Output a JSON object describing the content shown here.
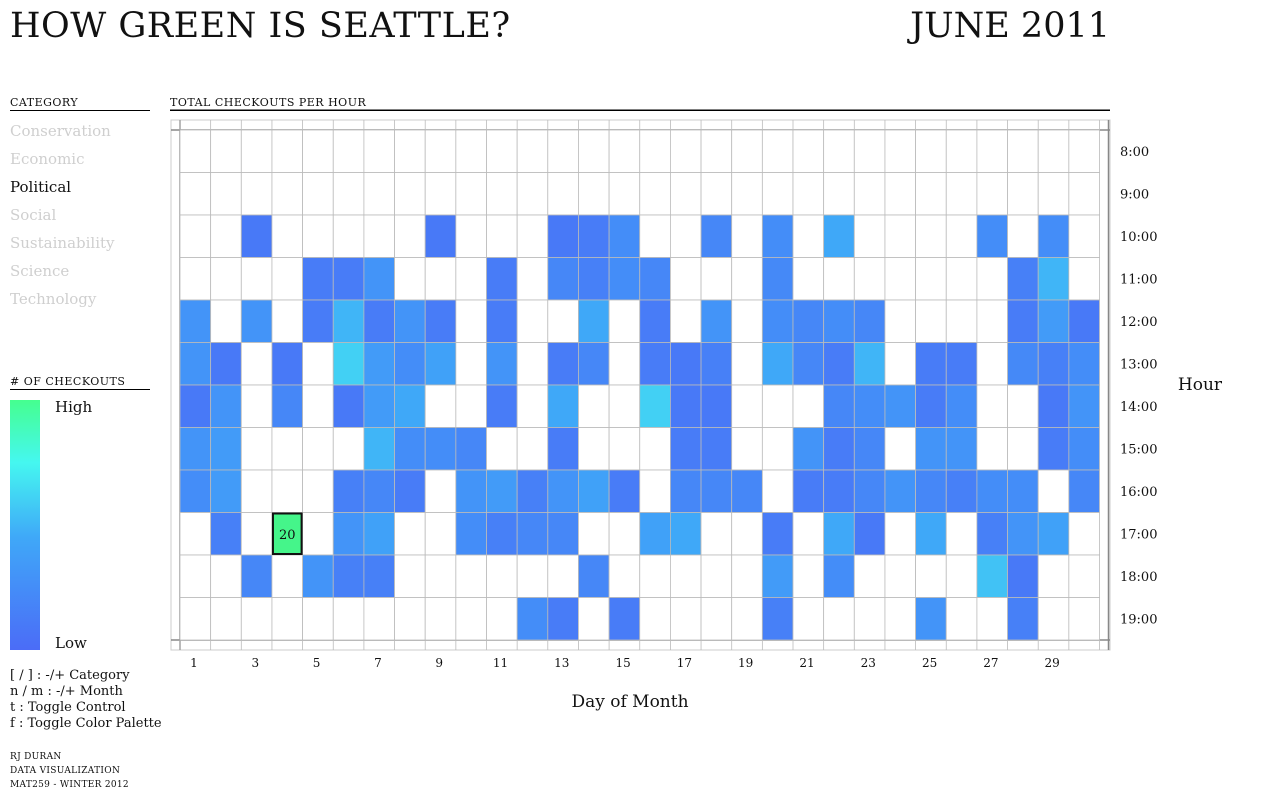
{
  "title": "HOW GREEN IS SEATTLE?",
  "month": "JUNE 2011",
  "sidebar": {
    "category_heading": "CATEGORY",
    "categories": [
      "Conservation",
      "Economic",
      "Political",
      "Social",
      "Sustainability",
      "Science",
      "Technology"
    ],
    "active_category": "Political",
    "legend_heading": "# OF CHECKOUTS",
    "legend_high": "High",
    "legend_low": "Low",
    "help": [
      "[ / ] : -/+ Category",
      "n / m : -/+ Month",
      "t : Toggle Control",
      "f : Toggle Color Palette"
    ],
    "credits": [
      "RJ DURAN",
      "DATA VISUALIZATION",
      "MAT259 - WINTER 2012"
    ]
  },
  "colors": {
    "low": "#4b6cf7",
    "high": "#45ff8f",
    "grid": "#bbbbbb",
    "highlight": "#45f58a"
  },
  "chart_data": {
    "type": "heatmap",
    "title": "TOTAL CHECKOUTS PER HOUR",
    "xlabel": "Day of Month",
    "ylabel": "Hour",
    "x": [
      1,
      2,
      3,
      4,
      5,
      6,
      7,
      8,
      9,
      10,
      11,
      12,
      13,
      14,
      15,
      16,
      17,
      18,
      19,
      20,
      21,
      22,
      23,
      24,
      25,
      26,
      27,
      28,
      29,
      30
    ],
    "x_tick_labels": [
      "1",
      "3",
      "5",
      "7",
      "9",
      "11",
      "13",
      "15",
      "17",
      "19",
      "21",
      "23",
      "25",
      "27",
      "29"
    ],
    "y": [
      "8:00",
      "9:00",
      "10:00",
      "11:00",
      "12:00",
      "13:00",
      "14:00",
      "15:00",
      "16:00",
      "17:00",
      "18:00",
      "19:00"
    ],
    "value_scale": "relative intensity 0-1 (0 = no checkouts, 1 = highest); the highlighted cell reads 20 checkouts",
    "values": [
      [
        0,
        0,
        0,
        0,
        0,
        0,
        0,
        0,
        0,
        0,
        0,
        0,
        0,
        0,
        0,
        0,
        0,
        0,
        0,
        0,
        0,
        0,
        0,
        0,
        0,
        0,
        0,
        0,
        0,
        0
      ],
      [
        0,
        0,
        0,
        0,
        0,
        0,
        0,
        0,
        0,
        0,
        0,
        0,
        0,
        0,
        0,
        0,
        0,
        0,
        0,
        0,
        0,
        0,
        0,
        0,
        0,
        0,
        0,
        0,
        0,
        0
      ],
      [
        0,
        0,
        0.1,
        0,
        0,
        0,
        0,
        0,
        0.1,
        0,
        0,
        0,
        0.1,
        0.12,
        0.25,
        0,
        0,
        0.2,
        0,
        0.25,
        0,
        0.45,
        0,
        0,
        0,
        0,
        0.25,
        0,
        0.25,
        0
      ],
      [
        0,
        0,
        0,
        0,
        0.12,
        0.12,
        0.3,
        0,
        0,
        0,
        0.12,
        0,
        0.2,
        0.15,
        0.25,
        0.2,
        0,
        0,
        0,
        0.22,
        0,
        0,
        0,
        0,
        0,
        0,
        0,
        0.15,
        0.5,
        0
      ],
      [
        0.3,
        0,
        0.3,
        0,
        0.12,
        0.5,
        0.12,
        0.3,
        0.12,
        0,
        0.12,
        0,
        0,
        0.45,
        0,
        0.12,
        0,
        0.3,
        0,
        0.25,
        0.2,
        0.25,
        0.2,
        0,
        0,
        0,
        0,
        0.12,
        0.35,
        0.1
      ],
      [
        0.3,
        0.1,
        0,
        0.1,
        0,
        0.6,
        0.35,
        0.25,
        0.4,
        0,
        0.3,
        0,
        0.12,
        0.2,
        0,
        0.12,
        0.1,
        0.15,
        0,
        0.45,
        0.2,
        0.12,
        0.5,
        0,
        0.12,
        0.12,
        0,
        0.22,
        0.15,
        0.25
      ],
      [
        0.1,
        0.3,
        0,
        0.2,
        0,
        0.1,
        0.35,
        0.45,
        0,
        0,
        0.12,
        0,
        0.45,
        0,
        0,
        0.6,
        0.1,
        0.1,
        0,
        0,
        0,
        0.2,
        0.25,
        0.3,
        0.12,
        0.25,
        0,
        0,
        0.1,
        0.3
      ],
      [
        0.3,
        0.35,
        0,
        0,
        0,
        0,
        0.5,
        0.25,
        0.25,
        0.2,
        0,
        0,
        0.12,
        0,
        0,
        0,
        0.12,
        0.12,
        0,
        0,
        0.3,
        0.12,
        0.2,
        0,
        0.3,
        0.3,
        0,
        0,
        0.12,
        0.25
      ],
      [
        0.25,
        0.35,
        0,
        0,
        0,
        0.15,
        0.2,
        0.12,
        0,
        0.3,
        0.35,
        0.15,
        0.3,
        0.4,
        0.12,
        0,
        0.2,
        0.2,
        0.2,
        0,
        0.12,
        0.12,
        0.2,
        0.3,
        0.2,
        0.15,
        0.25,
        0.25,
        0,
        0.2
      ],
      [
        0,
        0.15,
        0,
        1,
        0,
        0.3,
        0.4,
        0,
        0,
        0.25,
        0.15,
        0.2,
        0.2,
        0,
        0,
        0.4,
        0.45,
        0,
        0,
        0.12,
        0,
        0.45,
        0.1,
        0,
        0.45,
        0,
        0.15,
        0.3,
        0.4,
        0
      ],
      [
        0,
        0,
        0.2,
        0,
        0.3,
        0.15,
        0.15,
        0,
        0,
        0,
        0,
        0,
        0,
        0.2,
        0,
        0,
        0,
        0,
        0,
        0.35,
        0,
        0.25,
        0,
        0,
        0,
        0,
        0.55,
        0.1,
        0,
        0
      ],
      [
        0,
        0,
        0,
        0,
        0,
        0,
        0,
        0,
        0,
        0,
        0,
        0.25,
        0.12,
        0,
        0.12,
        0,
        0,
        0,
        0,
        0.15,
        0,
        0,
        0,
        0,
        0.3,
        0,
        0,
        0.15,
        0,
        0
      ]
    ],
    "highlight": {
      "day": 4,
      "hour": "17:00",
      "label": "20"
    },
    "grid": true,
    "legend": "left"
  }
}
